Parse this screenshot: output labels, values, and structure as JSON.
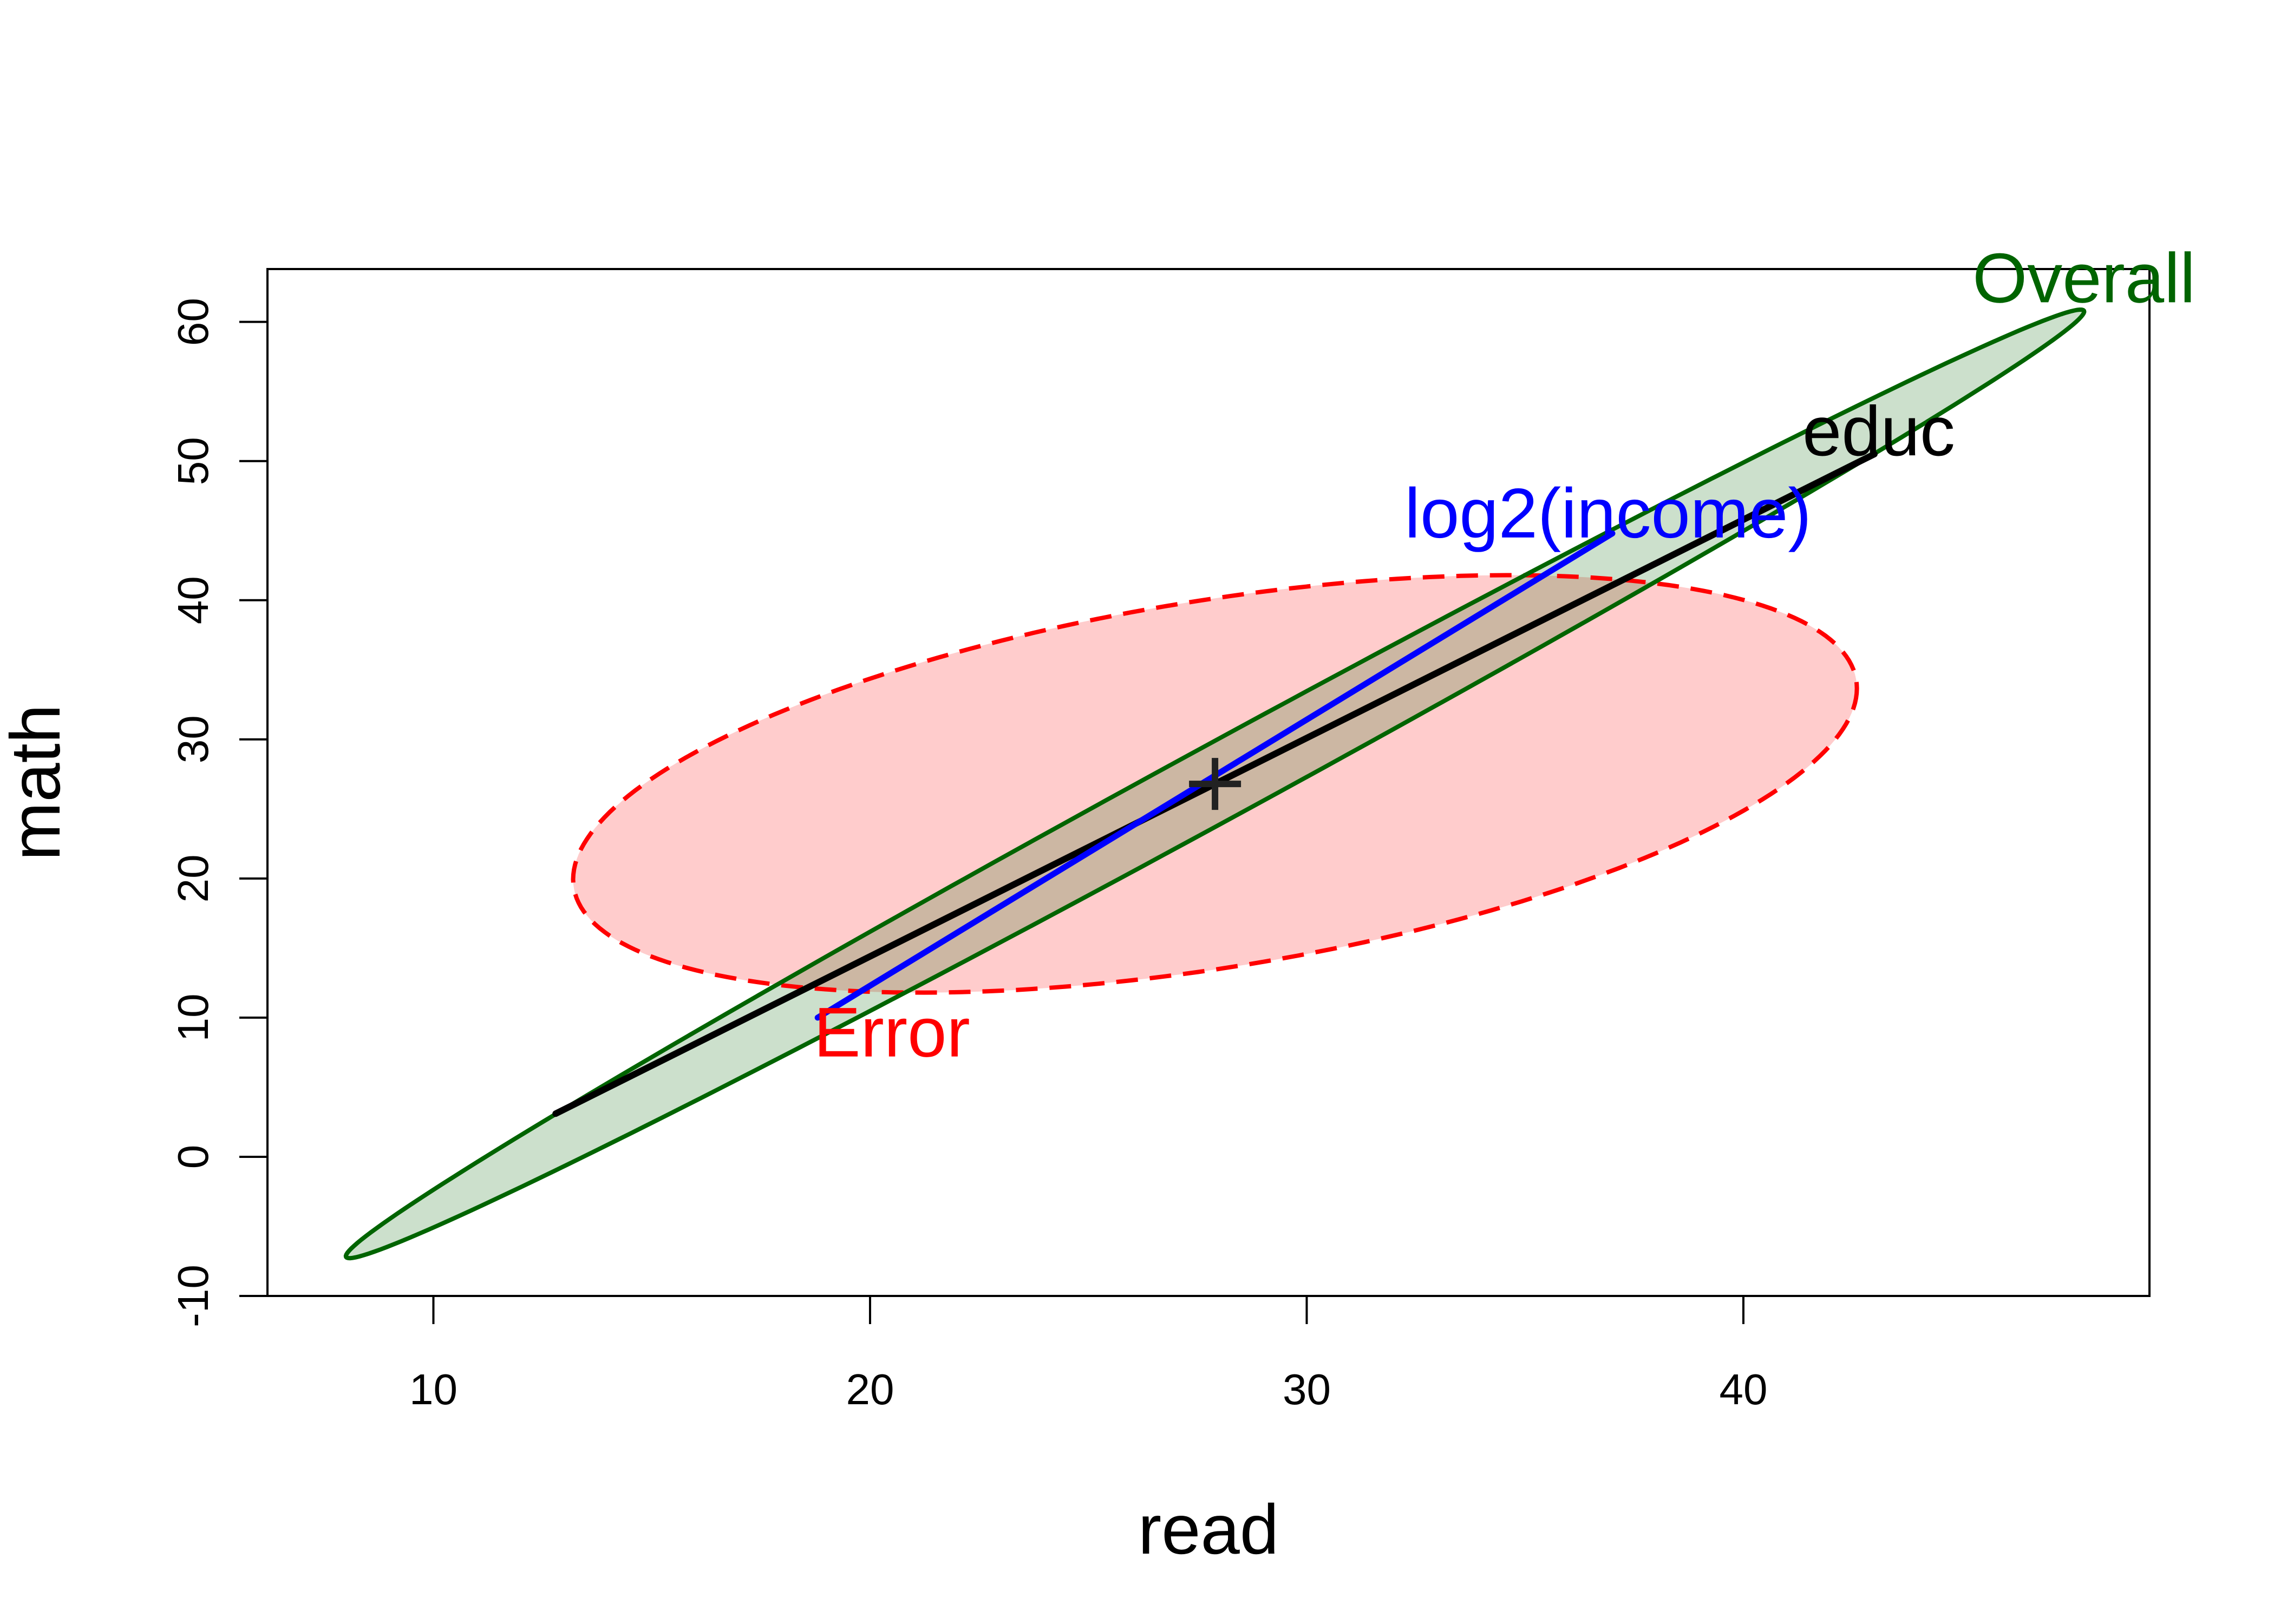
{
  "chart_data": {
    "type": "scatter",
    "title": "",
    "xlabel": "read",
    "ylabel": "math",
    "xlim": [
      6.2,
      49.3
    ],
    "ylim": [
      -10.0,
      63.8
    ],
    "x_ticks": [
      10,
      20,
      30,
      40
    ],
    "y_ticks": [
      -10,
      0,
      10,
      20,
      30,
      40,
      50,
      60
    ],
    "grid": false,
    "legend": "none",
    "centroid": {
      "x": 27.9,
      "y": 26.8,
      "marker": "+"
    },
    "series": [
      {
        "name": "Error",
        "shape": "ellipse",
        "color": "#FF0000",
        "fill": "#FFCCCC",
        "line_style": "dashed",
        "center": {
          "x": 27.9,
          "y": 26.8
        },
        "extreme_points": {
          "x_min": [
            18.2,
            19.0
          ],
          "x_max": [
            42.6,
            34.5
          ],
          "y_min": [
            22.0,
            11.8
          ],
          "y_max": [
            35.5,
            41.8
          ]
        },
        "label_position": {
          "x": 20.5,
          "y": 9.0
        }
      },
      {
        "name": "Overall",
        "shape": "ellipse",
        "color": "#006400",
        "fill": "rgba(0,100,0,0.2)",
        "line_style": "solid",
        "center": {
          "x": 27.9,
          "y": 26.8
        },
        "extreme_points": {
          "x_min": [
            7.9,
            -7.2
          ],
          "x_max": [
            47.8,
            60.8
          ]
        },
        "label_position": {
          "x": 47.8,
          "y": 63.2
        }
      },
      {
        "name": "educ",
        "shape": "degenerate-line",
        "color": "#000000",
        "line_style": "solid",
        "endpoints": [
          [
            12.8,
            3.1
          ],
          [
            43.0,
            50.5
          ]
        ],
        "label_position": {
          "x": 43.1,
          "y": 52.2
        }
      },
      {
        "name": "log2(income)",
        "shape": "degenerate-line",
        "color": "#0000FF",
        "line_style": "solid",
        "endpoints": [
          [
            18.8,
            10.0
          ],
          [
            37.0,
            44.8
          ]
        ],
        "label_position": {
          "x": 36.9,
          "y": 46.3
        }
      }
    ]
  }
}
